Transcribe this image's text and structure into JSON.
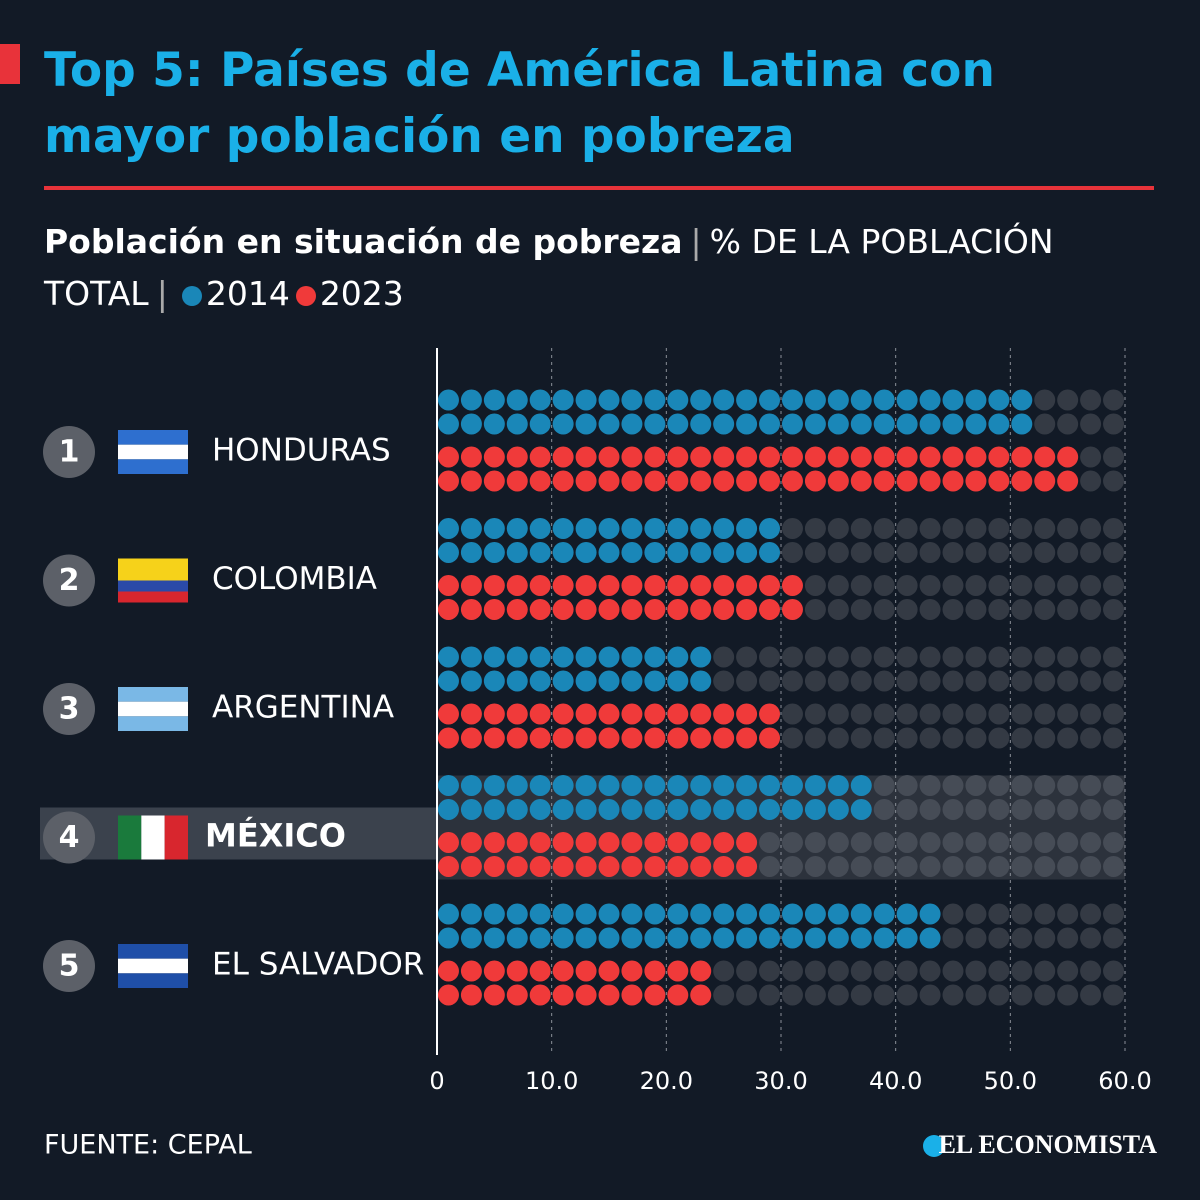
{
  "chart_data": {
    "type": "dotbar",
    "title": "Top 5: Países de América Latina con mayor población en pobreza",
    "subtitle": "Población en situación de pobreza",
    "unit": "% DE LA POBLACIÓN TOTAL",
    "ranks": [
      "1",
      "2",
      "3",
      "4",
      "5"
    ],
    "categories": [
      "HONDURAS",
      "COLOMBIA",
      "ARGENTINA",
      "MÉXICO",
      "EL SALVADOR"
    ],
    "series": [
      {
        "name": "2014",
        "color": "#1a87b8",
        "values": [
          52,
          30,
          24,
          38,
          44
        ]
      },
      {
        "name": "2023",
        "color": "#f03a3a",
        "values": [
          56,
          32,
          30,
          28,
          24
        ]
      }
    ],
    "xlim": [
      0,
      60
    ],
    "xticks": [
      0,
      {
        "value": 10,
        "label": "10.0"
      },
      {
        "value": 20,
        "label": "20.0"
      },
      {
        "value": 30,
        "label": "30.0"
      },
      {
        "value": 40,
        "label": "40.0"
      },
      {
        "value": 50,
        "label": "50.0"
      },
      {
        "value": 60,
        "label": "60.0"
      }
    ],
    "source": "FUENTE: CEPAL",
    "brand": "EL ECONOMISTA"
  }
}
